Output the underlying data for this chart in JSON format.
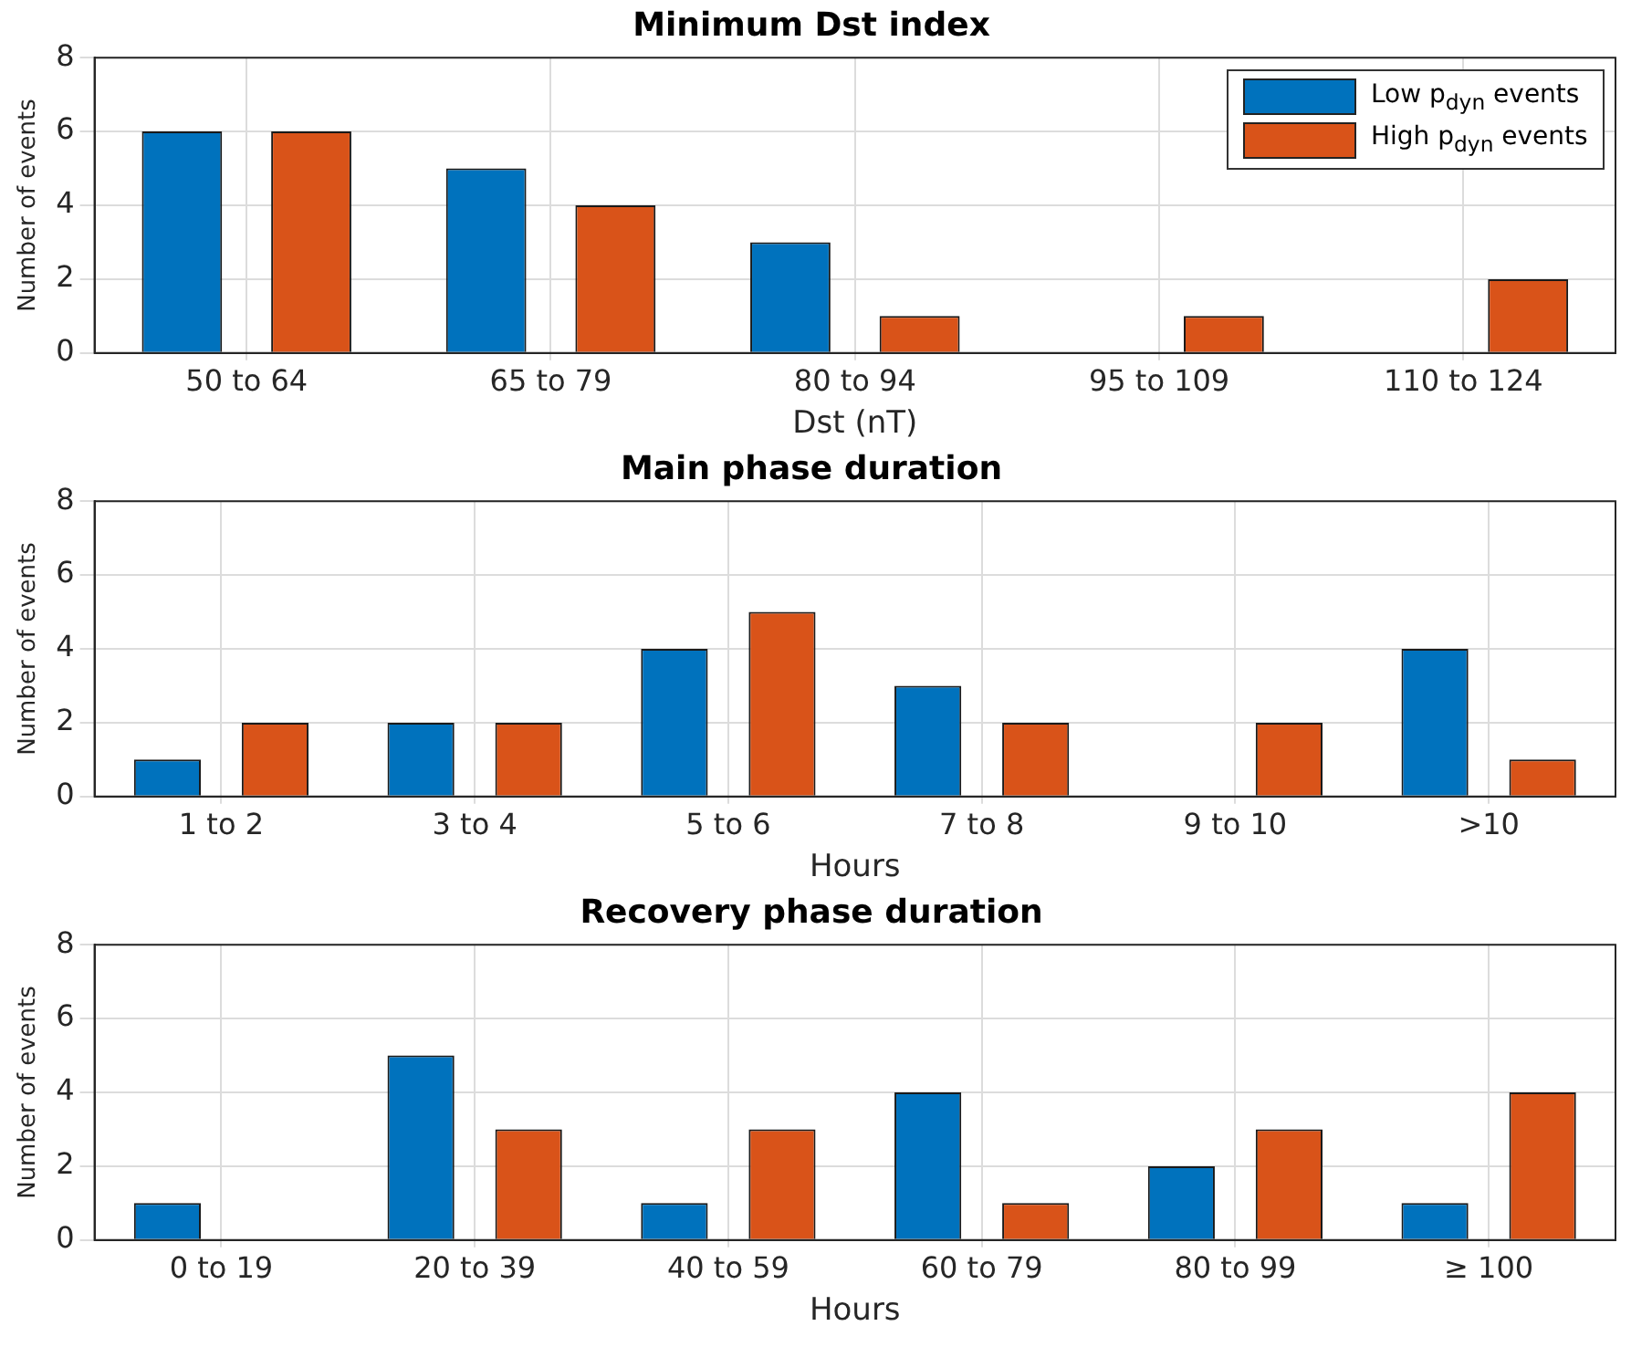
{
  "chart_data": [
    {
      "type": "bar",
      "title": "Minimum Dst index",
      "xlabel": "Dst (nT)",
      "ylabel": "Number of events",
      "categories": [
        "50 to 64",
        "65 to 79",
        "80 to 94",
        "95 to 109",
        "110 to 124"
      ],
      "series": [
        {
          "name": "Low p$_{dyn}$ events",
          "color": "#0072bd",
          "values": [
            6,
            5,
            3,
            0,
            0
          ]
        },
        {
          "name": "High p$_{dyn}$ events",
          "color": "#d95319",
          "values": [
            6,
            4,
            1,
            1,
            2
          ]
        }
      ],
      "ylim": [
        0,
        8
      ],
      "yticks": [
        0,
        2,
        4,
        6,
        8
      ],
      "grid": true,
      "legend": "top right"
    },
    {
      "type": "bar",
      "title": "Main phase duration",
      "xlabel": "Hours",
      "ylabel": "Number of events",
      "categories": [
        "1 to 2",
        "3 to 4",
        "5 to 6",
        "7 to 8",
        "9 to 10",
        ">10"
      ],
      "series": [
        {
          "color": "#0072bd",
          "values": [
            1,
            2,
            4,
            3,
            0,
            4
          ]
        },
        {
          "color": "#d95319",
          "values": [
            2,
            2,
            5,
            2,
            2,
            1
          ]
        }
      ],
      "ylim": [
        0,
        8
      ],
      "yticks": [
        0,
        2,
        4,
        6,
        8
      ],
      "grid": true
    },
    {
      "type": "bar",
      "title": "Recovery phase duration",
      "xlabel": "Hours",
      "ylabel": "Number of events",
      "categories": [
        "0 to 19",
        "20 to 39",
        "40 to 59",
        "60 to 79",
        "80 to 99",
        "≥ 100"
      ],
      "series": [
        {
          "color": "#0072bd",
          "values": [
            1,
            5,
            1,
            4,
            2,
            1
          ]
        },
        {
          "color": "#d95319",
          "values": [
            0,
            3,
            3,
            1,
            3,
            4
          ]
        }
      ],
      "ylim": [
        0,
        8
      ],
      "yticks": [
        0,
        2,
        4,
        6,
        8
      ],
      "grid": true
    }
  ]
}
